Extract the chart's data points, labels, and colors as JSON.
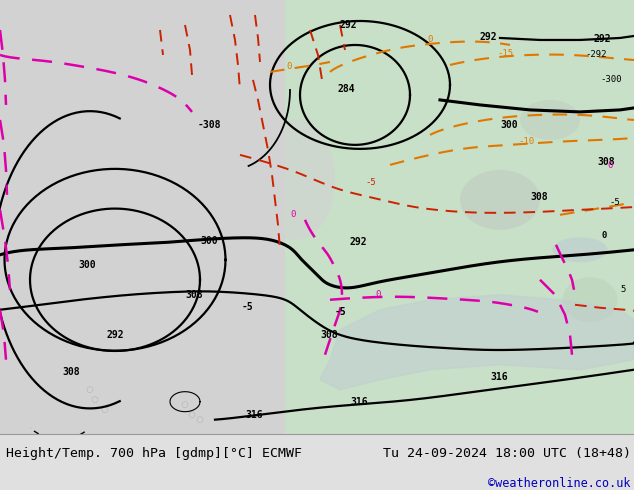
{
  "title_left": "Height/Temp. 700 hPa [gdmp][°C] ECMWF",
  "title_right": "Tu 24-09-2024 18:00 UTC (18+48)",
  "credit": "©weatheronline.co.uk",
  "ocean_color": "#d2d2d2",
  "land_color": "#c8dfc8",
  "land_light_color": "#b8e8b8",
  "footer_bg": "#e0e0e0",
  "text_color": "#000000",
  "credit_color": "#0000bb",
  "footer_font_size": 9.5,
  "credit_font_size": 8.5,
  "fig_width": 6.34,
  "fig_height": 4.9,
  "dpi": 100
}
